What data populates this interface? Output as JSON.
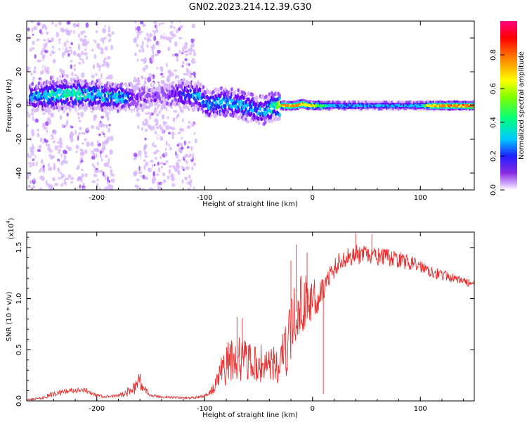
{
  "figure_title": "GN02.2023.214.12.39.G30",
  "colors": {
    "snr_line": "#e83030",
    "colormap": [
      "#ffffff",
      "#d9b8ff",
      "#9b4dff",
      "#6a00ff",
      "#2030ff",
      "#00c8ff",
      "#00ff80",
      "#80ff00",
      "#ffff00",
      "#ff8000",
      "#ff0000",
      "#ff0080"
    ]
  },
  "chart_data": [
    {
      "type": "heatmap",
      "title": "",
      "xlabel": "Height of straight line (km)",
      "ylabel": "Frequency (Hz)",
      "xlim": [
        -265,
        150
      ],
      "ylim": [
        -50,
        50
      ],
      "x_ticks": [
        -200,
        -100,
        0,
        100
      ],
      "y_ticks": [
        -40,
        -20,
        0,
        20,
        40
      ],
      "x_tick_labels": [
        "-200",
        "-100",
        "0",
        "100"
      ],
      "y_tick_labels": [
        "-40",
        "-20",
        "0",
        "20",
        "40"
      ],
      "colorbar": {
        "label": "Normalized spectral amplitude",
        "range": [
          0,
          1
        ],
        "ticks": [
          0.0,
          0.2,
          0.4,
          0.6,
          0.8
        ],
        "tick_labels": [
          "0.0",
          "0.2",
          "0.4",
          "0.6",
          "0.8"
        ]
      },
      "ridge": {
        "x": [
          -260,
          -240,
          -220,
          -200,
          -180,
          -160,
          -140,
          -120,
          -105,
          -95,
          -85,
          -70,
          -55,
          -45,
          -35,
          -25,
          -15,
          -10,
          0,
          20,
          50,
          80,
          100,
          110,
          130,
          150
        ],
        "freq": [
          5,
          6,
          7,
          6,
          5,
          5,
          6,
          7,
          5,
          0,
          2,
          1,
          -2,
          -3,
          0,
          0,
          0,
          1,
          0,
          0,
          0,
          0,
          0,
          0,
          0,
          0
        ],
        "amplitude": [
          0.45,
          0.55,
          0.6,
          0.5,
          0.55,
          0.2,
          0.2,
          0.35,
          0.5,
          0.5,
          0.5,
          0.5,
          0.45,
          0.45,
          0.6,
          0.95,
          0.95,
          0.9,
          0.85,
          0.5,
          0.5,
          0.5,
          0.5,
          0.9,
          0.95,
          0.95
        ]
      },
      "noise_regions": [
        [
          -265,
          -208
        ],
        [
          -205,
          -185
        ],
        [
          -165,
          -108
        ]
      ]
    },
    {
      "type": "line",
      "title": "",
      "xlabel": "Height of straight line (km)",
      "ylabel": "SNR (10 * v/v)",
      "y_multiplier_label": "(x10",
      "y_multiplier_exp": "4",
      "xlim": [
        -265,
        150
      ],
      "ylim": [
        0,
        16500
      ],
      "x_ticks": [
        -200,
        -100,
        0,
        100
      ],
      "y_ticks": [
        0,
        5000,
        10000,
        15000
      ],
      "x_tick_labels": [
        "-200",
        "-100",
        "0",
        "100"
      ],
      "y_tick_labels": [
        "0.0",
        "0.5",
        "1.0",
        "1.5"
      ],
      "series": [
        {
          "x": [
            -265,
            -250,
            -240,
            -230,
            -220,
            -210,
            -200,
            -190,
            -180,
            -170,
            -165,
            -160,
            -155,
            -150,
            -140,
            -120,
            -110,
            -100,
            -95,
            -90,
            -85,
            -80,
            -75,
            -70,
            -65,
            -60,
            -55,
            -50,
            -45,
            -40,
            -35,
            -30,
            -25,
            -20,
            -15,
            -10,
            -5,
            0,
            5,
            10,
            15,
            20,
            30,
            40,
            50,
            60,
            70,
            80,
            90,
            100,
            110,
            120,
            130,
            140,
            150
          ],
          "y": [
            100,
            300,
            700,
            900,
            1000,
            1000,
            500,
            400,
            500,
            900,
            1400,
            2000,
            1000,
            500,
            400,
            300,
            300,
            500,
            800,
            1500,
            2800,
            3500,
            4000,
            4200,
            4100,
            3800,
            3600,
            3500,
            3800,
            3700,
            3400,
            3600,
            4800,
            7000,
            8700,
            9500,
            9800,
            10000,
            10200,
            11000,
            12000,
            13000,
            14000,
            14300,
            14200,
            14100,
            14000,
            13800,
            13500,
            13200,
            12700,
            12300,
            12000,
            11700,
            11400
          ],
          "noise_amplitude": [
            60,
            150,
            300,
            300,
            250,
            250,
            150,
            150,
            150,
            500,
            800,
            900,
            400,
            150,
            120,
            100,
            100,
            150,
            300,
            700,
            1500,
            2000,
            2300,
            2300,
            2200,
            1900,
            1800,
            1800,
            2000,
            2000,
            1900,
            2300,
            2700,
            3000,
            3200,
            3000,
            2500,
            2000,
            1600,
            1300,
            1200,
            1100,
            1000,
            1000,
            950,
            900,
            850,
            800,
            750,
            650,
            600,
            550,
            450,
            400,
            350
          ],
          "spikes": [
            [
              -70,
              8200
            ],
            [
              -65,
              8100
            ],
            [
              -20,
              13700
            ],
            [
              -15,
              15300
            ],
            [
              -5,
              14500
            ],
            [
              10,
              700
            ],
            [
              40,
              16400
            ],
            [
              55,
              16300
            ]
          ]
        }
      ]
    }
  ]
}
